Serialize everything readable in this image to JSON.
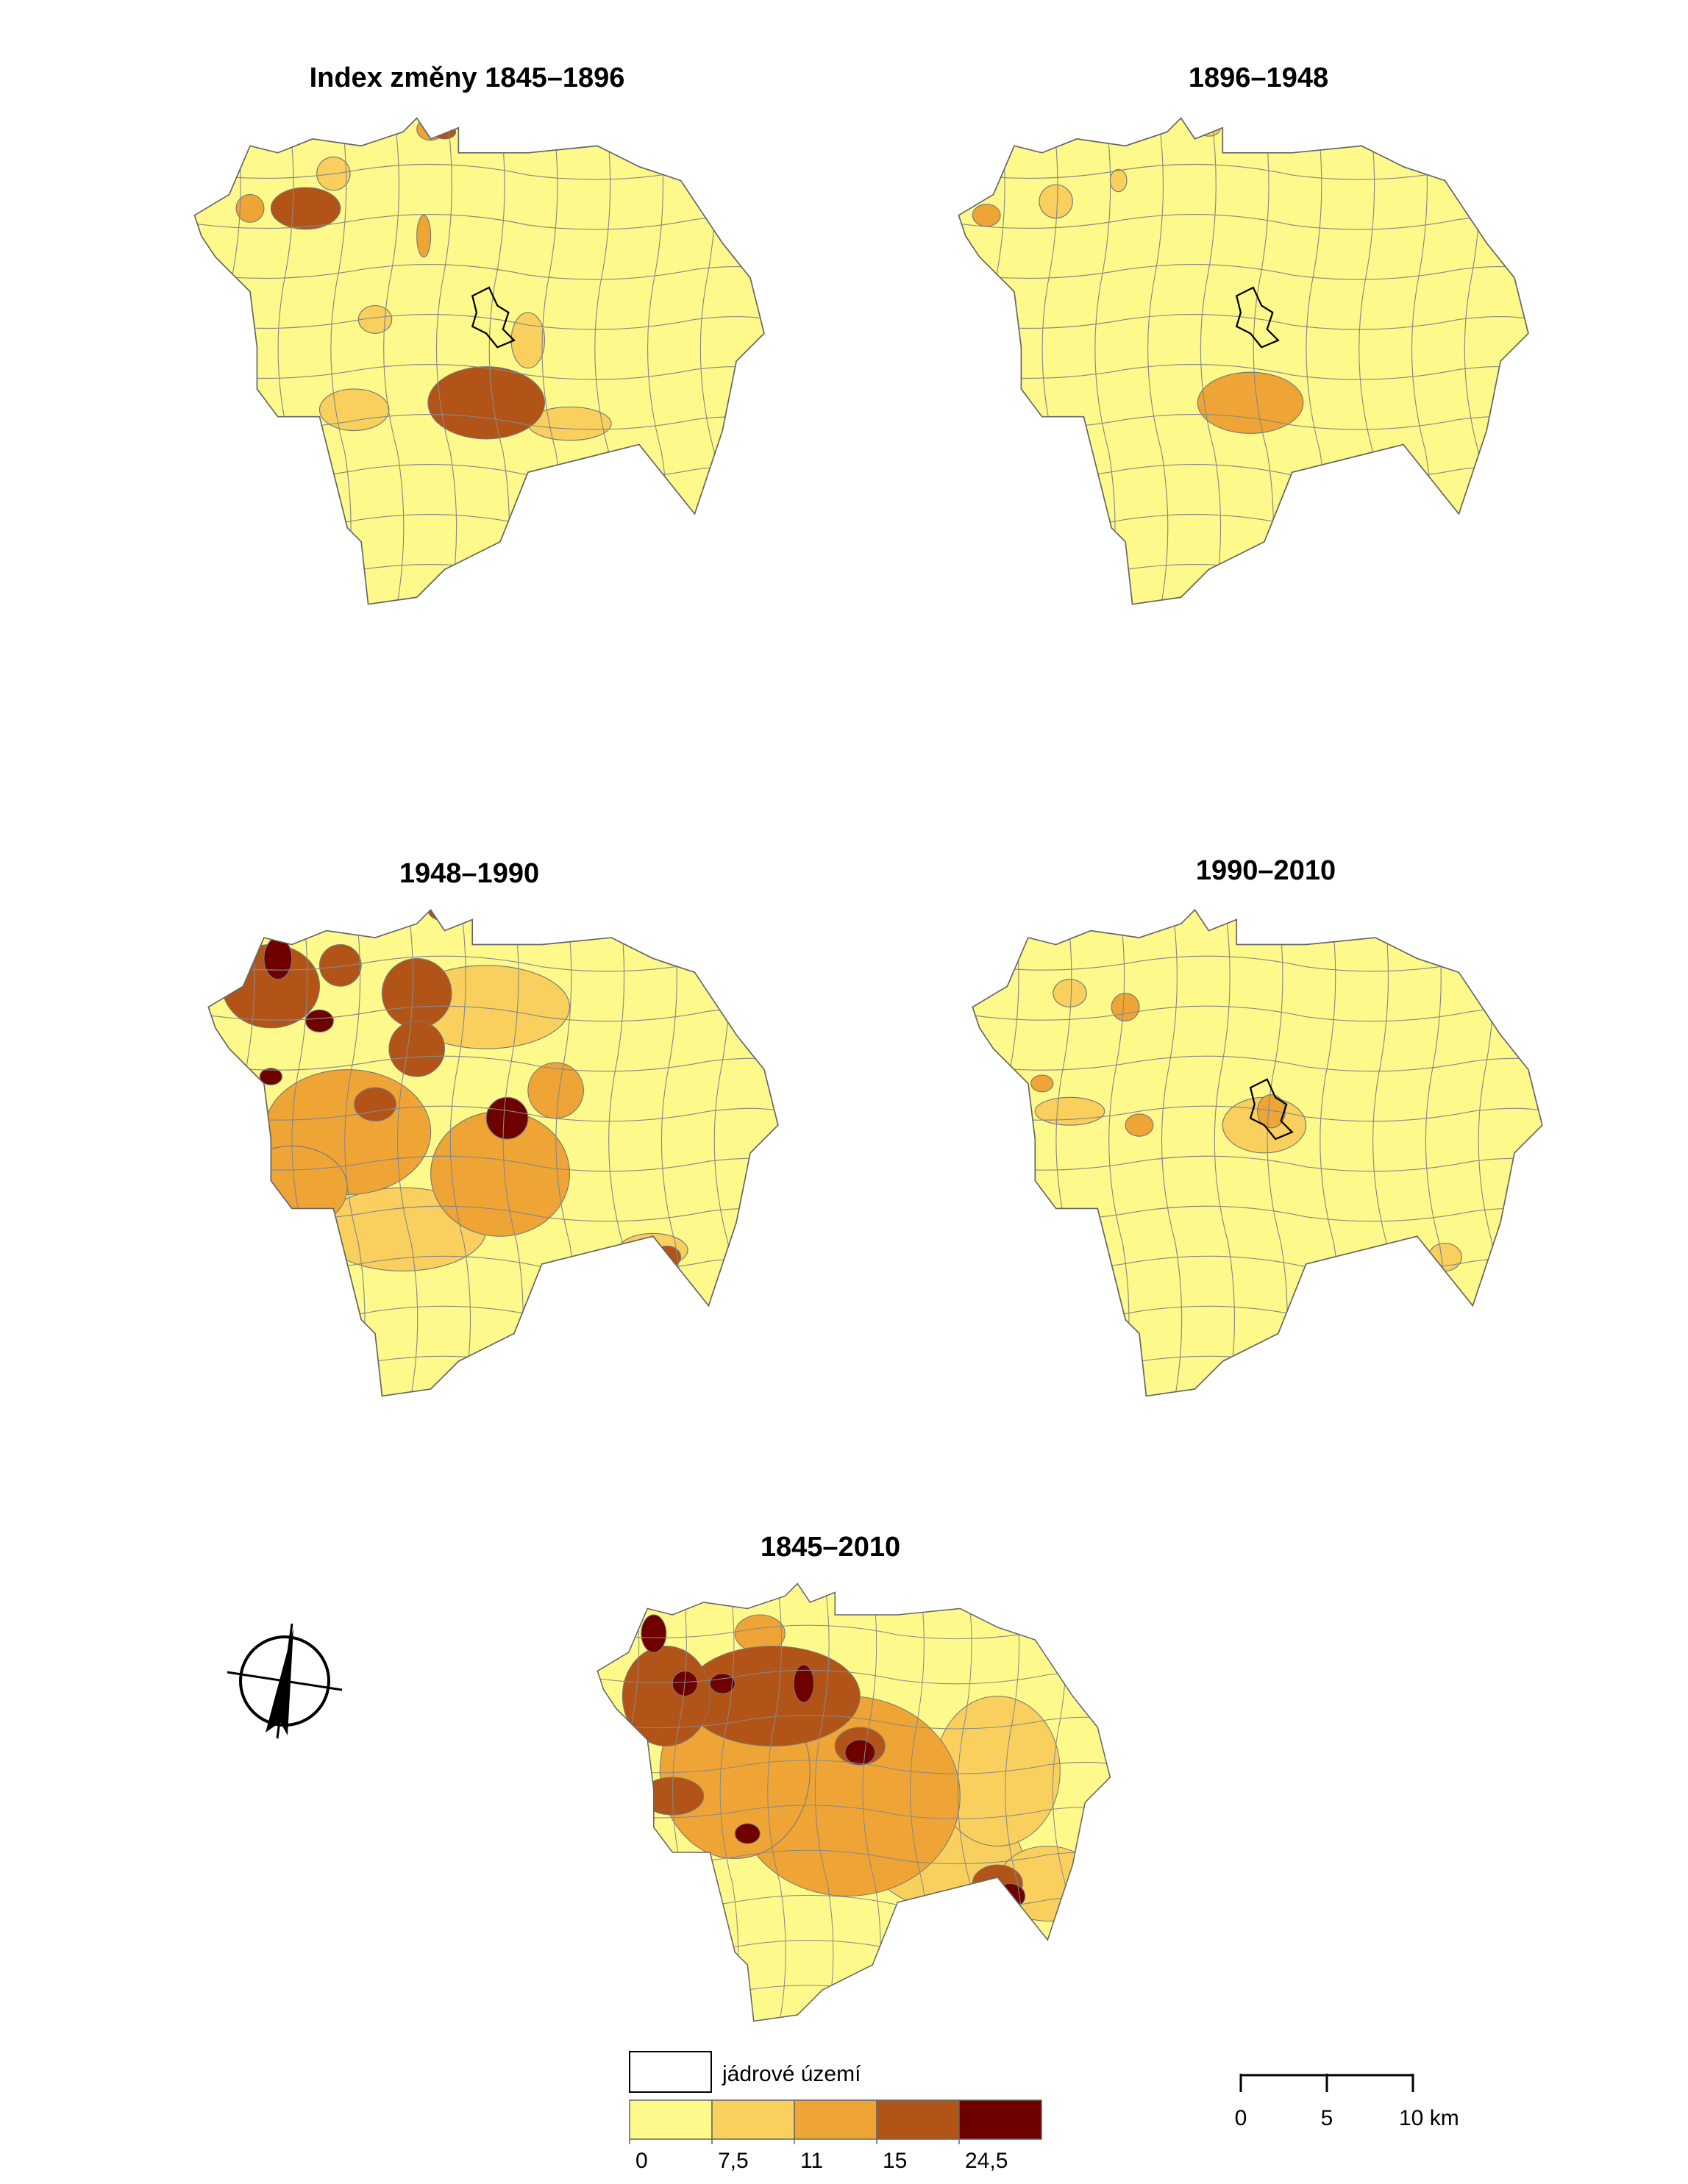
{
  "maps": [
    {
      "title": "Index změny 1845–1896"
    },
    {
      "title": "1896–1948"
    },
    {
      "title": "1948–1990"
    },
    {
      "title": "1990–2010"
    },
    {
      "title": "1845–2010"
    }
  ],
  "legend": {
    "core_label": "jádrové území",
    "colors": [
      "#fdf98a",
      "#f9d05e",
      "#eea536",
      "#b25418",
      "#6e0000"
    ],
    "breaks": [
      0,
      {
        "value": 7.5,
        "label": "7,5"
      },
      11,
      15,
      {
        "value": 24.5,
        "label": "24,5"
      }
    ]
  },
  "scale_bar": {
    "ticks": [
      0,
      5,
      {
        "value": 10,
        "label": "10 km"
      }
    ]
  }
}
